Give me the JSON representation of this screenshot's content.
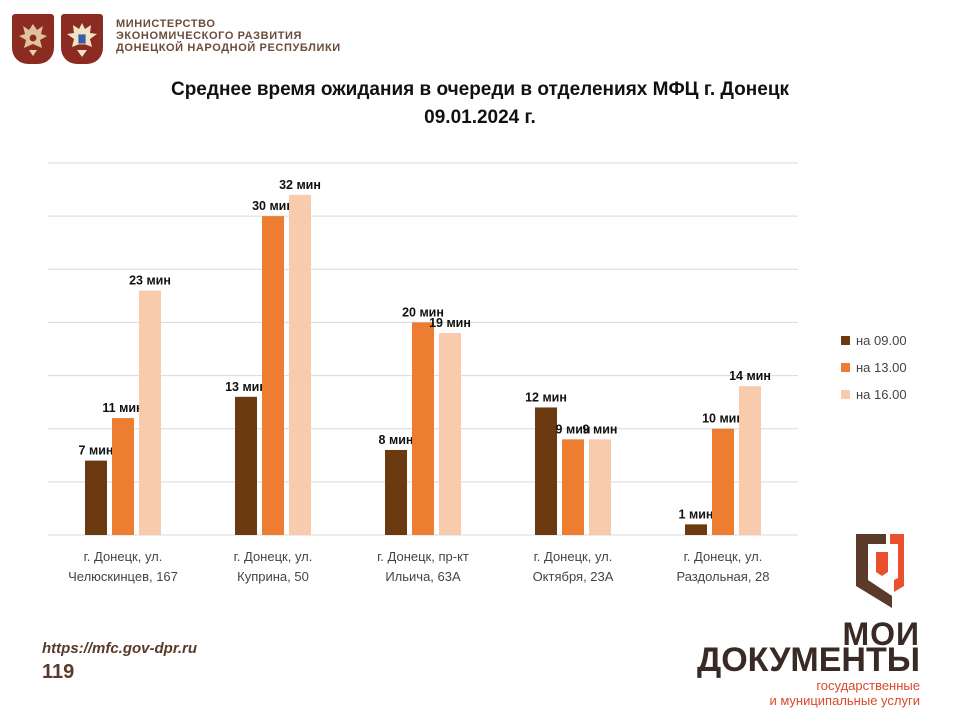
{
  "header": {
    "ministry_lines": [
      "МИНИСТЕРСТВО",
      "ЭКОНОМИЧЕСКОГО РАЗВИТИЯ",
      "ДОНЕЦКОЙ НАРОДНОЙ РЕСПУБЛИКИ"
    ]
  },
  "title_line1": "Среднее время ожидания в очереди в отделениях МФЦ г. Донецк",
  "title_line2": "09.01.2024 г.",
  "chart_data": {
    "type": "bar",
    "categories": [
      [
        "г. Донецк, ул.",
        "Челюскинцев, 167"
      ],
      [
        "г. Донецк, ул.",
        "Куприна, 50"
      ],
      [
        "г. Донецк, пр-кт",
        "Ильича, 63А"
      ],
      [
        "г. Донецк, ул.",
        "Октября, 23А"
      ],
      [
        "г. Донецк, ул.",
        "Раздольная, 28"
      ]
    ],
    "series": [
      {
        "name": "на 09.00",
        "color": "#6b3a10",
        "values": [
          7,
          13,
          8,
          12,
          1
        ]
      },
      {
        "name": "на 13.00",
        "color": "#ed7d31",
        "values": [
          11,
          30,
          20,
          9,
          10
        ]
      },
      {
        "name": "на 16.00",
        "color": "#f8cbad",
        "values": [
          23,
          32,
          19,
          9,
          14
        ]
      }
    ],
    "value_suffix": " мин",
    "ylim": [
      0,
      35
    ],
    "grid_step": 5,
    "grid": true,
    "legend_position": "right"
  },
  "footer": {
    "url": "https://mfc.gov-dpr.ru",
    "page_number": "119"
  },
  "brand": {
    "line1": "МОИ",
    "line2": "ДОКУМЕНТЫ",
    "line3": "государственные",
    "line4": "и муниципальные услуги"
  }
}
